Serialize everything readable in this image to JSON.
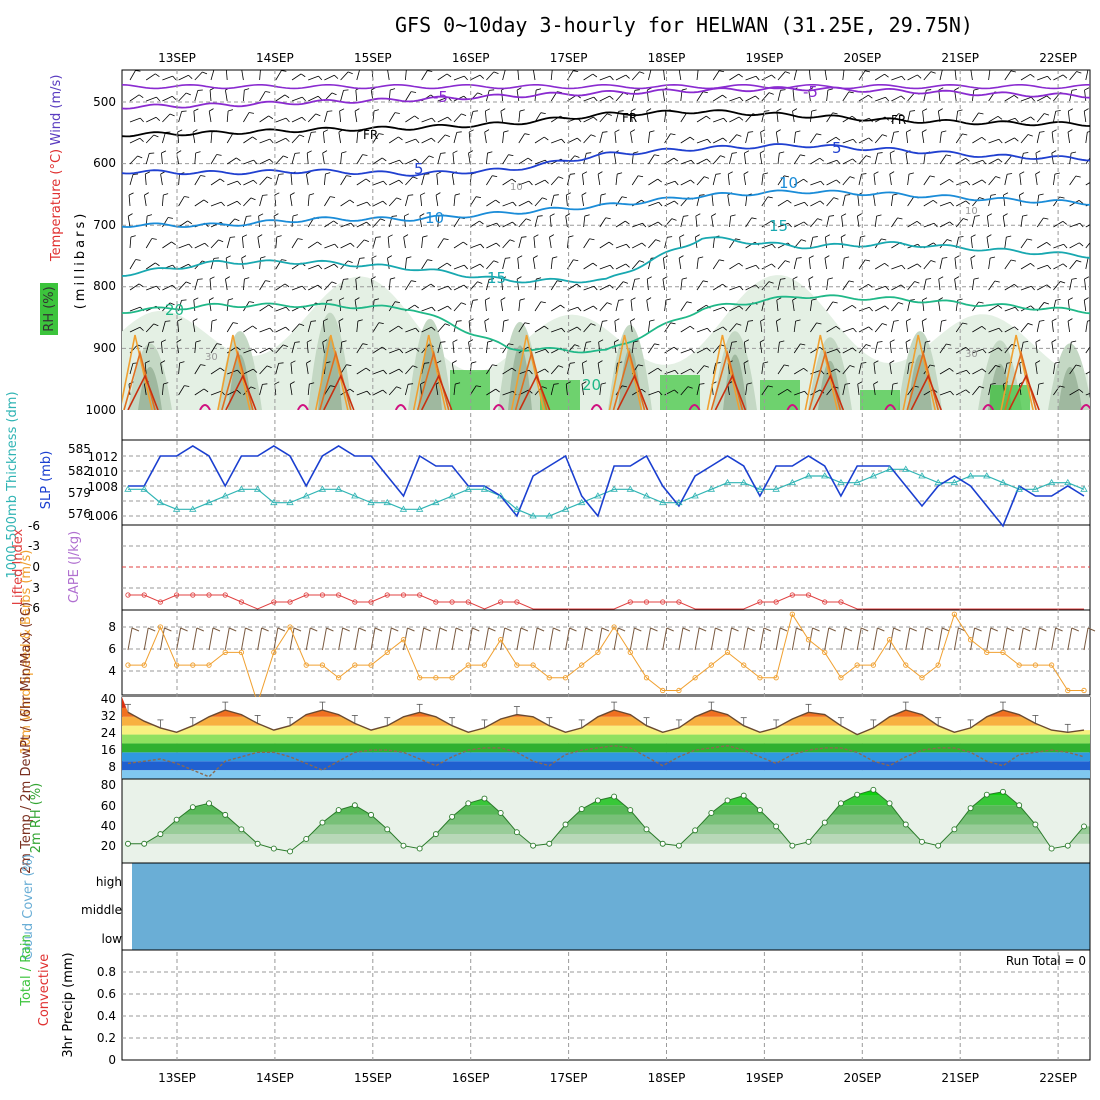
{
  "title": "GFS 0~10day 3-hourly for HELWAN (31.25E, 29.75N)",
  "colors": {
    "rh_green": "#3cc43c",
    "temp_label": "#e03030",
    "wind_label": "#5a3cc0",
    "rh_label": "#34a534",
    "slp_blue": "#1a3fd0",
    "thickness_cyan": "#30b4b4",
    "lifted_red": "#e04040",
    "cape_purple": "#b070d0",
    "wind_orange": "#f0a030",
    "barb_brown": "#7a5a40",
    "cloud_blue": "#6aaed6",
    "precip_green": "#3cc43c",
    "precip_red": "#e03030"
  },
  "chart_data": [
    {
      "name": "upper-air",
      "type": "contour",
      "x_dates": [
        "13SEP",
        "14SEP",
        "15SEP",
        "16SEP",
        "17SEP",
        "18SEP",
        "19SEP",
        "20SEP",
        "21SEP",
        "22SEP"
      ],
      "y_ticks": [
        500,
        600,
        700,
        800,
        900,
        1000
      ],
      "ylabel_parts": {
        "wind": "Wind (m/s)",
        "temp": "Temperature (°C)",
        "rh": "RH (%)",
        "mb": "(millibars)"
      },
      "isotherm_labels": [
        "-5",
        "FR",
        "5",
        "10",
        "15",
        "20"
      ],
      "rh_labels": [
        "10",
        "30"
      ],
      "isotherms": [
        {
          "label": "-5",
          "pressure": [
            508,
            505,
            500,
            496,
            490,
            485,
            481,
            478,
            482,
            487,
            490
          ],
          "color": "#8a2bd0"
        },
        {
          "label": "FR",
          "pressure": [
            553,
            550,
            545,
            542,
            535,
            520,
            515,
            522,
            530,
            534,
            536
          ],
          "color": "#000000"
        },
        {
          "label": "5",
          "pressure": [
            613,
            615,
            612,
            617,
            610,
            585,
            575,
            570,
            578,
            588,
            592
          ],
          "color": "#2040d0"
        },
        {
          "label": "10",
          "pressure": [
            700,
            700,
            690,
            690,
            680,
            668,
            652,
            645,
            650,
            658,
            664
          ],
          "color": "#1a8cd8"
        },
        {
          "label": "15",
          "pressure": [
            780,
            760,
            760,
            770,
            790,
            790,
            720,
            735,
            730,
            740,
            750
          ],
          "color": "#18a8b0"
        },
        {
          "label": "20",
          "pressure": [
            840,
            830,
            830,
            835,
            900,
            905,
            835,
            815,
            820,
            830,
            840
          ],
          "color": "#20b888"
        }
      ]
    },
    {
      "name": "slp-thickness",
      "type": "line",
      "ylabel": "SLP (mb)",
      "ylabel2": "1000-500mb Thickness (dm)",
      "left_ticks": [
        "585",
        "582",
        "579",
        "576"
      ],
      "right_ticks": [
        "1012",
        "1010",
        "1008",
        "1006"
      ],
      "series": [
        {
          "name": "SLP (mb)",
          "values": [
            1009,
            1009,
            1012,
            1012,
            1013,
            1012,
            1009,
            1012,
            1012,
            1013,
            1012,
            1009,
            1012,
            1013,
            1012,
            1012,
            1010,
            1008,
            1012,
            1011,
            1011,
            1009,
            1009,
            1008,
            1006,
            1010,
            1011,
            1012,
            1008,
            1006,
            1011,
            1011,
            1012,
            1009,
            1007,
            1010,
            1011,
            1012,
            1011,
            1008,
            1011,
            1011,
            1012,
            1011,
            1008,
            1011,
            1011,
            1011,
            1009,
            1007,
            1009,
            1010,
            1009,
            1007,
            1005,
            1009,
            1008,
            1008,
            1009,
            1008
          ]
        },
        {
          "name": "1000-500mb Thickness (dm)",
          "values": [
            580,
            580,
            578,
            577,
            577,
            578,
            579,
            580,
            580,
            578,
            578,
            579,
            580,
            580,
            579,
            578,
            578,
            577,
            577,
            578,
            579,
            580,
            580,
            579,
            577,
            576,
            576,
            577,
            578,
            579,
            580,
            580,
            579,
            578,
            578,
            579,
            580,
            581,
            581,
            580,
            580,
            581,
            582,
            582,
            581,
            581,
            582,
            583,
            583,
            582,
            581,
            581,
            582,
            582,
            581,
            580,
            580,
            581,
            581,
            580
          ]
        }
      ]
    },
    {
      "name": "stability",
      "type": "line",
      "ylabel": "Lifted Index",
      "ylabel2": "CAPE (J/kg)",
      "ticks": [
        "-6",
        "-3",
        "0",
        "3",
        "6"
      ],
      "series": [
        {
          "name": "Lifted Index",
          "values": [
            4,
            4,
            5,
            4,
            4,
            4,
            4,
            5,
            6,
            5,
            5,
            4,
            4,
            4,
            5,
            5,
            4,
            4,
            4,
            5,
            5,
            5,
            6,
            5,
            5,
            6,
            6,
            6,
            6,
            6,
            6,
            5,
            5,
            5,
            5,
            6,
            6,
            6,
            6,
            5,
            5,
            4,
            4,
            5,
            5,
            6,
            6,
            6,
            6,
            6,
            6,
            6,
            6,
            6,
            6,
            6,
            6,
            6,
            6,
            6
          ]
        }
      ]
    },
    {
      "name": "wind10m",
      "type": "line",
      "ylabel": "10m Wind Speed & Barbs (m/s)",
      "ticks": [
        "8",
        "6",
        "4"
      ],
      "series": [
        {
          "name": "10m Wind Speed",
          "values": [
            5,
            5,
            8,
            5,
            5,
            5,
            6,
            6,
            2,
            6,
            8,
            5,
            5,
            4,
            5,
            5,
            6,
            7,
            4,
            4,
            4,
            5,
            5,
            7,
            5,
            5,
            4,
            4,
            5,
            6,
            8,
            6,
            4,
            3,
            3,
            4,
            5,
            6,
            5,
            4,
            4,
            9,
            7,
            6,
            4,
            5,
            5,
            7,
            5,
            4,
            5,
            9,
            7,
            6,
            6,
            5,
            5,
            5,
            3,
            3
          ]
        }
      ]
    },
    {
      "name": "temperature2m",
      "type": "area",
      "ylabel": "2m Temp / 2m DewPt / (6hr Min/Max) (°C)",
      "ticks": [
        "40",
        "32",
        "24",
        "16",
        "8"
      ],
      "series": [
        {
          "name": "2m Temp",
          "values": [
            34,
            30,
            27,
            25,
            28,
            32,
            35,
            33,
            29,
            26,
            28,
            33,
            35,
            33,
            29,
            26,
            28,
            32,
            34,
            32,
            28,
            25,
            27,
            31,
            33,
            32,
            28,
            25,
            27,
            32,
            35,
            33,
            28,
            25,
            27,
            32,
            35,
            33,
            28,
            25,
            27,
            31,
            34,
            33,
            28,
            24,
            27,
            32,
            35,
            33,
            28,
            25,
            27,
            32,
            35,
            33,
            29,
            26,
            25,
            26
          ]
        },
        {
          "name": "2m DewPt",
          "values": [
            11,
            12,
            13,
            11,
            8,
            5,
            12,
            14,
            16,
            16,
            14,
            11,
            8,
            12,
            16,
            17,
            17,
            16,
            13,
            10,
            14,
            17,
            18,
            18,
            16,
            12,
            10,
            15,
            17,
            18,
            19,
            18,
            14,
            10,
            14,
            17,
            18,
            19,
            17,
            14,
            11,
            15,
            17,
            18,
            18,
            16,
            12,
            10,
            14,
            17,
            18,
            18,
            16,
            12,
            10,
            15,
            16,
            17,
            16,
            14
          ]
        }
      ]
    },
    {
      "name": "rh2m",
      "type": "area",
      "ylabel": "2m RH (%)",
      "ticks": [
        "80",
        "60",
        "40",
        "20"
      ],
      "series": [
        {
          "name": "2m RH",
          "values": [
            20,
            20,
            30,
            45,
            58,
            62,
            50,
            35,
            20,
            15,
            12,
            25,
            42,
            55,
            60,
            50,
            35,
            18,
            15,
            30,
            48,
            62,
            67,
            52,
            32,
            18,
            20,
            40,
            56,
            65,
            69,
            55,
            35,
            20,
            18,
            34,
            52,
            65,
            70,
            55,
            38,
            18,
            22,
            42,
            62,
            71,
            76,
            62,
            40,
            22,
            18,
            35,
            57,
            71,
            74,
            60,
            40,
            15,
            18,
            38
          ]
        }
      ]
    },
    {
      "name": "cloud-cover",
      "type": "area",
      "ylabel": "Cloud Cover (%)",
      "levels": [
        "high",
        "middle",
        "low"
      ]
    },
    {
      "name": "precip",
      "type": "bar",
      "ylabel": "3hr Precip (mm)",
      "ylabel2a": "Total / Rain",
      "ylabel2b": "Convective",
      "ticks": [
        "0.8",
        "0.6",
        "0.4",
        "0.2",
        "0"
      ],
      "run_total": "Run Total = 0",
      "values": []
    }
  ]
}
